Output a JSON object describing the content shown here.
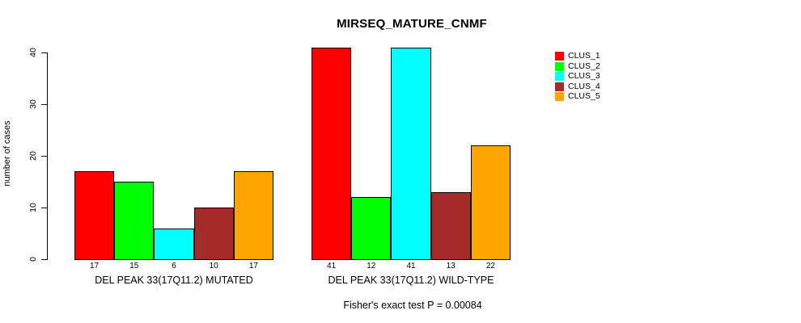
{
  "chart_data": {
    "type": "bar",
    "title": "MIRSEQ_MATURE_CNMF",
    "ylabel": "number of cases",
    "ylim": [
      0,
      40
    ],
    "yticks": [
      0,
      10,
      20,
      30,
      40
    ],
    "grid": false,
    "legend_position": "right",
    "groups": [
      {
        "label": "DEL PEAK 33(17Q11.2) MUTATED",
        "values": [
          17,
          15,
          6,
          10,
          17
        ]
      },
      {
        "label": "DEL PEAK 33(17Q11.2) WILD-TYPE",
        "values": [
          41,
          12,
          41,
          13,
          22
        ]
      }
    ],
    "series": [
      {
        "name": "CLUS_1",
        "color": "#FF0000"
      },
      {
        "name": "CLUS_2",
        "color": "#00FF00"
      },
      {
        "name": "CLUS_3",
        "color": "#00FFFF"
      },
      {
        "name": "CLUS_4",
        "color": "#A52A2A"
      },
      {
        "name": "CLUS_5",
        "color": "#FFA500"
      }
    ],
    "annotation": "Fisher's exact test P = 0.00084"
  }
}
